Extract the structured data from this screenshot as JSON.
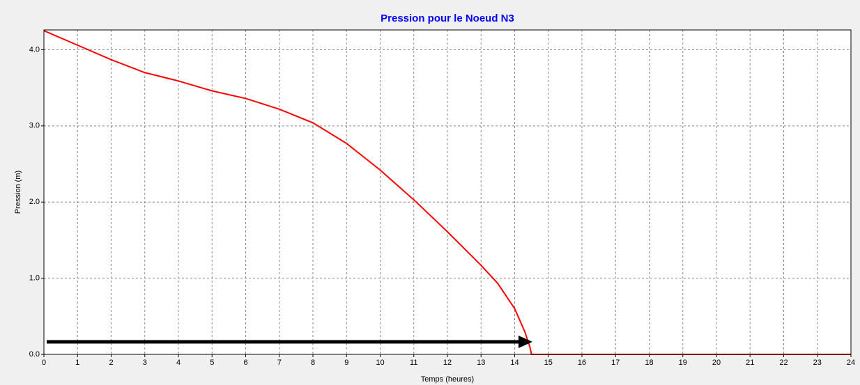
{
  "chart_data": {
    "type": "line",
    "title": "Pression pour le Noeud N3",
    "x_label": "Temps (heures)",
    "y_label": "Pression (m)",
    "x": [
      0,
      1,
      2,
      3,
      4,
      5,
      6,
      7,
      8,
      9,
      10,
      11,
      12,
      13,
      13.5,
      14,
      14.3,
      14.45,
      14.5,
      15,
      16,
      17,
      18,
      19,
      20,
      21,
      22,
      23,
      24
    ],
    "values": [
      4.25,
      4.06,
      3.87,
      3.7,
      3.59,
      3.46,
      3.36,
      3.22,
      3.04,
      2.77,
      2.42,
      2.03,
      1.61,
      1.17,
      0.93,
      0.6,
      0.3,
      0.1,
      0,
      0,
      0,
      0,
      0,
      0,
      0,
      0,
      0,
      0,
      0
    ],
    "color": "#ff0000",
    "xlim": [
      0,
      24
    ],
    "ylim": [
      0,
      4.26
    ],
    "xticks": [
      0,
      1,
      2,
      3,
      4,
      5,
      6,
      7,
      8,
      9,
      10,
      11,
      12,
      13,
      14,
      15,
      16,
      17,
      18,
      19,
      20,
      21,
      22,
      23,
      24
    ],
    "yticks": [
      {
        "value": 0,
        "label": "0.0"
      },
      {
        "value": 1,
        "label": "1.0"
      },
      {
        "value": 2,
        "label": "2.0"
      },
      {
        "value": 3,
        "label": "3.0"
      },
      {
        "value": 4,
        "label": "4.0"
      }
    ],
    "grid": true
  }
}
